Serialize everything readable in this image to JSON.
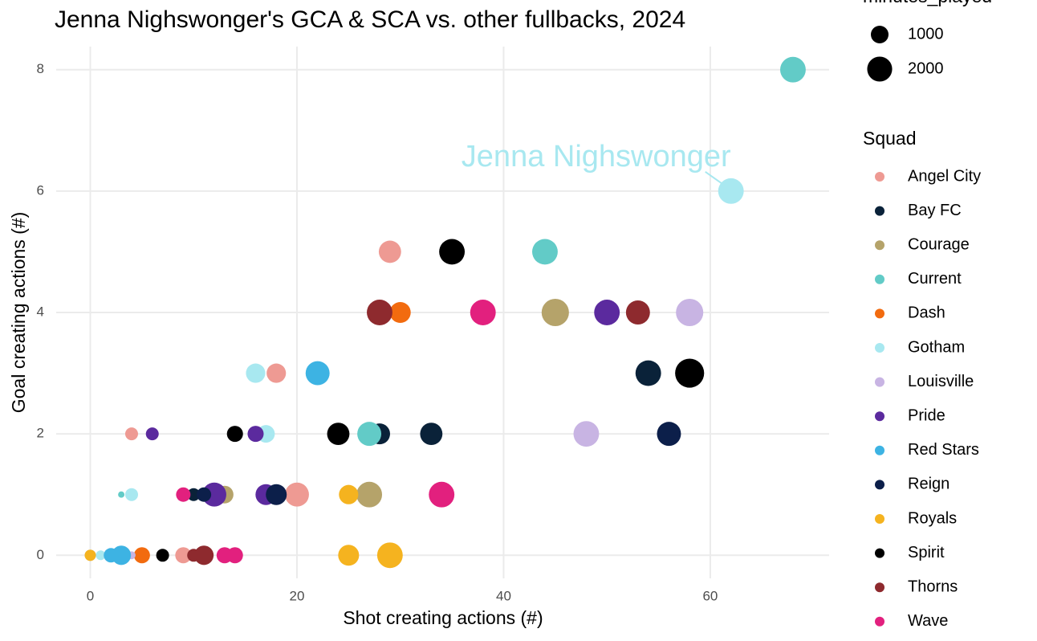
{
  "chart_data": {
    "type": "scatter",
    "title": "Jenna Nighswonger's GCA & SCA vs. other fullbacks, 2024",
    "x_label": "Shot creating actions (#)",
    "y_label": "Goal creating actions (#)",
    "xlim": [
      -3.3,
      71.5
    ],
    "ylim": [
      -0.38,
      8.38
    ],
    "xticks": [
      0,
      20,
      40,
      60
    ],
    "yticks": [
      0,
      2,
      4,
      6,
      8
    ],
    "grid": true,
    "size_legend": {
      "title": "minutes_played",
      "values": [
        1000,
        2000
      ]
    },
    "legend_title": "Squad",
    "annotation": {
      "text": "Jenna Nighswonger",
      "x": 62,
      "y": 6,
      "color": "#a8e8f0"
    },
    "series": [
      {
        "name": "Angel City",
        "color": "#ee9a93",
        "x": [
          29,
          18,
          4,
          20,
          9
        ],
        "values": [
          5,
          3,
          2,
          1,
          0
        ],
        "sizes": [
          1600,
          1200,
          530,
          1850,
          830
        ]
      },
      {
        "name": "Bay FC",
        "color": "#0a2239",
        "x": [
          54,
          28,
          33,
          10
        ],
        "values": [
          3,
          2,
          2,
          1
        ],
        "sizes": [
          2100,
          1400,
          1600,
          530
        ]
      },
      {
        "name": "Courage",
        "color": "#b5a36a",
        "x": [
          45,
          27,
          13,
          0
        ],
        "values": [
          4,
          1,
          1,
          0
        ],
        "sizes": [
          2400,
          2100,
          1000,
          400
        ]
      },
      {
        "name": "Current",
        "color": "#62cbc7",
        "x": [
          68,
          44,
          27,
          3
        ],
        "values": [
          8,
          5,
          2,
          1
        ],
        "sizes": [
          2100,
          2100,
          1850,
          130
        ]
      },
      {
        "name": "Dash",
        "color": "#f26b0f",
        "x": [
          30,
          5
        ],
        "values": [
          4,
          0
        ],
        "sizes": [
          1400,
          830
        ]
      },
      {
        "name": "Gotham",
        "color": "#a8e8f0",
        "x": [
          62,
          16,
          17,
          4,
          1
        ],
        "values": [
          6,
          3,
          2,
          1,
          0
        ],
        "sizes": [
          2100,
          1200,
          1000,
          530,
          300
        ]
      },
      {
        "name": "Louisville",
        "color": "#c8b4e3",
        "x": [
          58,
          48,
          4
        ],
        "values": [
          4,
          2,
          0
        ],
        "sizes": [
          2400,
          2100,
          200
        ]
      },
      {
        "name": "Pride",
        "color": "#5b2a9e",
        "x": [
          50,
          6,
          16,
          17,
          12
        ],
        "values": [
          4,
          2,
          2,
          1,
          1
        ],
        "sizes": [
          2100,
          530,
          830,
          1400,
          1850
        ]
      },
      {
        "name": "Red Stars",
        "color": "#3db3e3",
        "x": [
          22,
          3,
          2
        ],
        "values": [
          3,
          0,
          0
        ],
        "sizes": [
          1850,
          1200,
          670
        ]
      },
      {
        "name": "Reign",
        "color": "#0c1f4a",
        "x": [
          56,
          18,
          11
        ],
        "values": [
          2,
          1,
          1
        ],
        "sizes": [
          1850,
          1400,
          670
        ]
      },
      {
        "name": "Royals",
        "color": "#f5b31f",
        "x": [
          29,
          25,
          25,
          0
        ],
        "values": [
          0,
          0,
          1,
          0
        ],
        "sizes": [
          2100,
          1400,
          1200,
          400
        ]
      },
      {
        "name": "Spirit",
        "color": "#000000",
        "x": [
          35,
          58,
          14,
          24,
          7
        ],
        "values": [
          5,
          3,
          2,
          2,
          0
        ],
        "sizes": [
          2100,
          2700,
          830,
          1600,
          530
        ]
      },
      {
        "name": "Thorns",
        "color": "#8e2a2e",
        "x": [
          28,
          53,
          11,
          10
        ],
        "values": [
          4,
          4,
          0,
          0
        ],
        "sizes": [
          2100,
          1850,
          1200,
          530
        ]
      },
      {
        "name": "Wave",
        "color": "#e2207e",
        "x": [
          38,
          34,
          9,
          13,
          14
        ],
        "values": [
          4,
          1,
          1,
          0,
          0
        ],
        "sizes": [
          2100,
          2100,
          670,
          830,
          830
        ]
      }
    ]
  }
}
